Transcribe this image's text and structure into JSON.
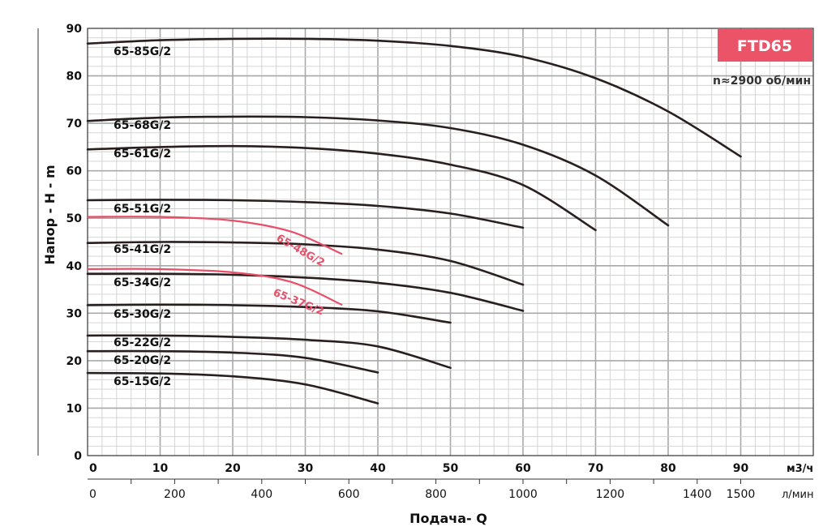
{
  "chart_data": {
    "type": "line",
    "badge": "FTD65",
    "speed": "n≈2900 об/мин",
    "ylabel": "Напор - H - m",
    "xlabel": "Подача- Q",
    "x_unit": "м3/ч",
    "x2_unit": "л/мин",
    "xlim": [
      0,
      100
    ],
    "ylim": [
      0,
      90
    ],
    "x_ticks": [
      "0",
      "10",
      "20",
      "30",
      "40",
      "50",
      "60",
      "70",
      "80",
      "90"
    ],
    "y_ticks": [
      "0",
      "10",
      "20",
      "30",
      "40",
      "50",
      "60",
      "70",
      "80",
      "90"
    ],
    "x2_ticks": [
      "0",
      "200",
      "400",
      "600",
      "800",
      "1000",
      "1200",
      "1400",
      "1500"
    ],
    "x2_tick_values": [
      0,
      200,
      400,
      600,
      800,
      1000,
      1200,
      1400,
      1500
    ],
    "grid": true,
    "series": [
      {
        "name": "65-85G/2",
        "color": "#2a1f1f",
        "points": [
          [
            0,
            86.8
          ],
          [
            10,
            87.5
          ],
          [
            20,
            87.8
          ],
          [
            30,
            87.8
          ],
          [
            40,
            87.4
          ],
          [
            50,
            86.3
          ],
          [
            60,
            84.0
          ],
          [
            70,
            79.5
          ],
          [
            80,
            72.5
          ],
          [
            90,
            63.0
          ]
        ]
      },
      {
        "name": "65-68G/2",
        "color": "#2a1f1f",
        "points": [
          [
            0,
            70.5
          ],
          [
            10,
            71.2
          ],
          [
            20,
            71.4
          ],
          [
            30,
            71.3
          ],
          [
            40,
            70.6
          ],
          [
            50,
            69.0
          ],
          [
            60,
            65.5
          ],
          [
            70,
            59.0
          ],
          [
            80,
            48.5
          ]
        ]
      },
      {
        "name": "65-61G/2",
        "color": "#2a1f1f",
        "points": [
          [
            0,
            64.5
          ],
          [
            10,
            65.0
          ],
          [
            20,
            65.2
          ],
          [
            30,
            64.8
          ],
          [
            40,
            63.6
          ],
          [
            50,
            61.3
          ],
          [
            60,
            57.0
          ],
          [
            70,
            47.5
          ]
        ]
      },
      {
        "name": "65-51G/2",
        "color": "#2a1f1f",
        "points": [
          [
            0,
            53.8
          ],
          [
            10,
            53.9
          ],
          [
            20,
            53.8
          ],
          [
            30,
            53.4
          ],
          [
            40,
            52.6
          ],
          [
            50,
            51.0
          ],
          [
            60,
            48.0
          ]
        ]
      },
      {
        "name": "65-41G/2",
        "color": "#2a1f1f",
        "points": [
          [
            0,
            44.8
          ],
          [
            10,
            45.0
          ],
          [
            20,
            44.9
          ],
          [
            30,
            44.5
          ],
          [
            40,
            43.4
          ],
          [
            50,
            41.0
          ],
          [
            60,
            36.0
          ]
        ]
      },
      {
        "name": "65-34G/2",
        "color": "#2a1f1f",
        "points": [
          [
            0,
            38.3
          ],
          [
            10,
            38.3
          ],
          [
            20,
            38.1
          ],
          [
            30,
            37.5
          ],
          [
            40,
            36.4
          ],
          [
            50,
            34.3
          ],
          [
            60,
            30.5
          ]
        ]
      },
      {
        "name": "65-30G/2",
        "color": "#2a1f1f",
        "points": [
          [
            0,
            31.7
          ],
          [
            10,
            31.8
          ],
          [
            20,
            31.7
          ],
          [
            30,
            31.3
          ],
          [
            40,
            30.4
          ],
          [
            50,
            28.0
          ]
        ]
      },
      {
        "name": "65-22G/2",
        "color": "#2a1f1f",
        "points": [
          [
            0,
            25.3
          ],
          [
            10,
            25.3
          ],
          [
            20,
            25.0
          ],
          [
            30,
            24.4
          ],
          [
            40,
            23.0
          ],
          [
            50,
            18.5
          ]
        ]
      },
      {
        "name": "65-20G/2",
        "color": "#2a1f1f",
        "points": [
          [
            0,
            22.0
          ],
          [
            10,
            22.0
          ],
          [
            20,
            21.7
          ],
          [
            30,
            20.6
          ],
          [
            40,
            17.5
          ]
        ]
      },
      {
        "name": "65-15G/2",
        "color": "#2a1f1f",
        "points": [
          [
            0,
            17.4
          ],
          [
            10,
            17.3
          ],
          [
            20,
            16.7
          ],
          [
            30,
            15.0
          ],
          [
            40,
            11.0
          ]
        ]
      },
      {
        "name": "65-48G/2",
        "color": "#e8506a",
        "points": [
          [
            0,
            50.3
          ],
          [
            10,
            50.3
          ],
          [
            20,
            49.5
          ],
          [
            28,
            47.2
          ],
          [
            35,
            42.5
          ]
        ]
      },
      {
        "name": "65-37G/2",
        "color": "#e8506a",
        "points": [
          [
            0,
            39.3
          ],
          [
            10,
            39.3
          ],
          [
            20,
            38.6
          ],
          [
            28,
            36.6
          ],
          [
            35,
            31.8
          ]
        ]
      }
    ]
  }
}
